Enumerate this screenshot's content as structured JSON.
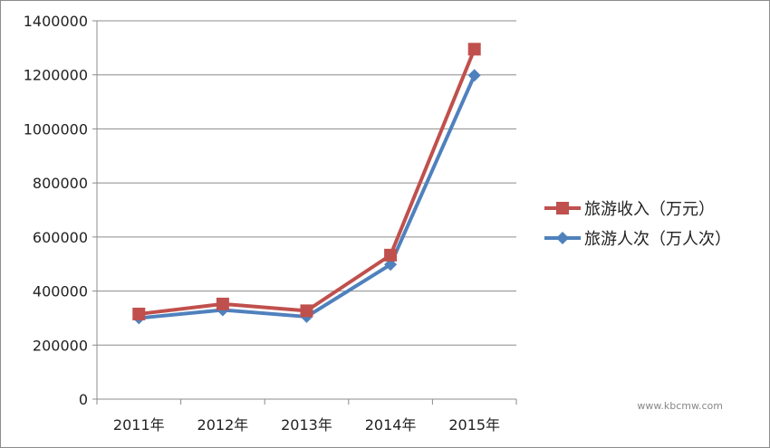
{
  "chart_data": {
    "type": "line",
    "title": "",
    "xlabel": "",
    "ylabel": "",
    "categories": [
      "2011年",
      "2012年",
      "2013年",
      "2014年",
      "2015年"
    ],
    "ylim": [
      0,
      1400000
    ],
    "yticks": [
      "0",
      "200000",
      "400000",
      "600000",
      "800000",
      "1000000",
      "1200000",
      "1400000"
    ],
    "grid": true,
    "legend_position": "right",
    "series": [
      {
        "name": "旅游收入（万元）",
        "color": "#c0504d",
        "marker": "square",
        "values": [
          315000,
          352000,
          327000,
          533000,
          1295000
        ]
      },
      {
        "name": "旅游人次（万人次）",
        "color": "#4f81bd",
        "marker": "diamond",
        "values": [
          300000,
          330000,
          305000,
          498000,
          1198000
        ]
      }
    ]
  },
  "watermark": {
    "text": "www.kbcmw.com"
  }
}
